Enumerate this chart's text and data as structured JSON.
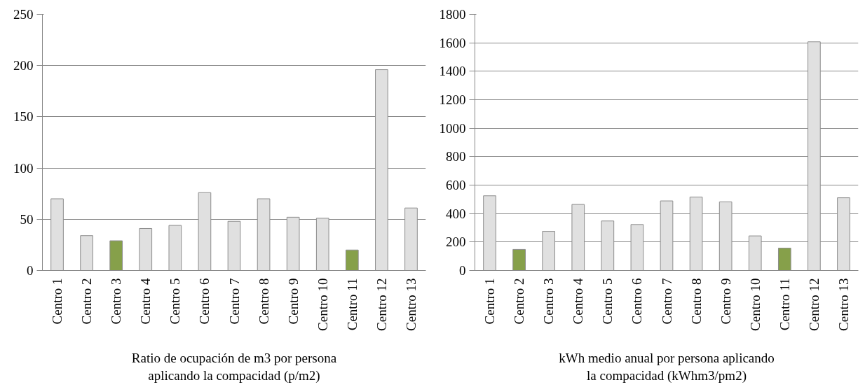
{
  "chart_data": [
    {
      "type": "bar",
      "xlabel": "Ratio de ocupación de m3 por persona\naplicando la compacidad (p/m2)",
      "categories": [
        "Centro 1",
        "Centro 2",
        "Centro 3",
        "Centro 4",
        "Centro 5",
        "Centro 6",
        "Centro 7",
        "Centro 8",
        "Centro 9",
        "Centro 10",
        "Centro 11",
        "Centro 12",
        "Centro 13"
      ],
      "values": [
        70,
        34,
        29,
        41,
        44,
        76,
        48,
        70,
        52,
        51,
        20,
        196,
        61
      ],
      "colors": [
        "#e0e0e0",
        "#e0e0e0",
        "#86a04a",
        "#e0e0e0",
        "#e0e0e0",
        "#e0e0e0",
        "#e0e0e0",
        "#e0e0e0",
        "#e0e0e0",
        "#e0e0e0",
        "#86a04a",
        "#e0e0e0",
        "#e0e0e0"
      ],
      "ylim": [
        0,
        250
      ],
      "yticks": [
        0,
        50,
        100,
        150,
        200,
        250
      ],
      "grid": "y"
    },
    {
      "type": "bar",
      "xlabel": "kWh medio anual por persona aplicando\nla compacidad (kWhm3/pm2)",
      "categories": [
        "Centro 1",
        "Centro 2",
        "Centro 3",
        "Centro 4",
        "Centro 5",
        "Centro 6",
        "Centro 7",
        "Centro 8",
        "Centro 9",
        "Centro 10",
        "Centro 11",
        "Centro 12",
        "Centro 13"
      ],
      "values": [
        525,
        148,
        275,
        464,
        348,
        323,
        489,
        516,
        482,
        243,
        157,
        1607,
        511
      ],
      "colors": [
        "#e0e0e0",
        "#86a04a",
        "#e0e0e0",
        "#e0e0e0",
        "#e0e0e0",
        "#e0e0e0",
        "#e0e0e0",
        "#e0e0e0",
        "#e0e0e0",
        "#e0e0e0",
        "#86a04a",
        "#e0e0e0",
        "#e0e0e0"
      ],
      "ylim": [
        0,
        1800
      ],
      "yticks": [
        0,
        200,
        400,
        600,
        800,
        1000,
        1200,
        1400,
        1600,
        1800
      ],
      "grid": "y"
    }
  ]
}
